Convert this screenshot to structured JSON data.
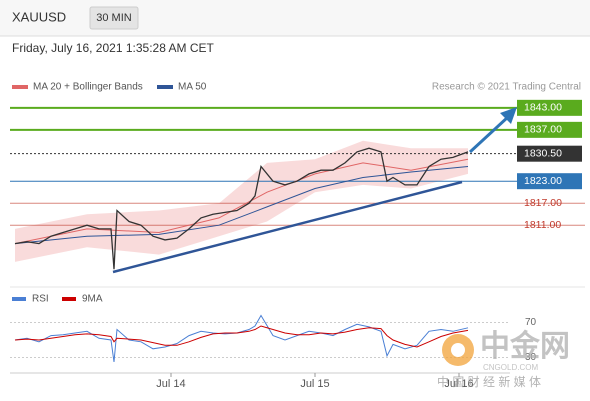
{
  "header": {
    "symbol": "XAUUSD",
    "timeframe": "30 MIN",
    "datetime": "Friday, July 16, 2021 1:35:28 AM CET"
  },
  "watermark": {
    "brand": "中金网",
    "site": "CNGOLD.COM",
    "slogan": "中 国 财 经 新 媒 体"
  },
  "chart_data": [
    {
      "type": "line",
      "credit": "Research © 2021 Trading Central",
      "color": "#333333",
      "xlim": [
        -26.83,
        56.5
      ],
      "ylim": [
        1794.7,
        1846.5
      ],
      "x": [
        -26,
        -24,
        -22,
        -20,
        -18,
        -16,
        -14,
        -12,
        -10,
        -9.5,
        -9,
        -7,
        -5,
        -3,
        -1,
        1,
        3,
        5,
        7,
        9,
        11,
        13,
        14,
        15,
        17,
        19,
        21,
        23,
        25,
        27,
        29,
        31,
        33,
        35,
        36,
        37,
        39,
        41,
        43,
        45,
        47,
        49.5
      ],
      "values": [
        1806,
        1806.5,
        1806,
        1808,
        1809,
        1810,
        1811,
        1810,
        1810,
        1799,
        1815,
        1812,
        1811,
        1808,
        1807,
        1807.5,
        1810,
        1813,
        1814,
        1814.5,
        1815,
        1817,
        1819,
        1827,
        1823,
        1822,
        1823,
        1825,
        1826,
        1826,
        1828,
        1831,
        1832,
        1831,
        1823,
        1824,
        1822,
        1822,
        1827,
        1829,
        1829.5,
        1831
      ],
      "series": [
        {
          "name": "MA 20 + Bollinger Bands",
          "color": "#e06666",
          "band_color": "#f7cccc",
          "x": [
            -26,
            -14,
            -2,
            8,
            16,
            24,
            32,
            40,
            49.5
          ],
          "values": [
            1806,
            1810,
            1809,
            1813,
            1820,
            1825,
            1828,
            1826,
            1829
          ],
          "upper": [
            1810,
            1814,
            1815,
            1817,
            1828,
            1829,
            1834,
            1832,
            1832
          ],
          "lower": [
            1801,
            1805,
            1803,
            1808,
            1812,
            1820,
            1822,
            1821,
            1825
          ]
        },
        {
          "name": "MA 50",
          "color": "#2f5597",
          "x": [
            -26,
            -14,
            -2,
            8,
            16,
            24,
            32,
            40,
            49.5
          ],
          "values": [
            1806,
            1808,
            1808.5,
            1811,
            1816,
            1821,
            1824,
            1825.5,
            1827
          ]
        }
      ],
      "levels": [
        {
          "value": 1843,
          "label": "1843.00",
          "color": "#5aab1e",
          "boxed": true,
          "dashed": false
        },
        {
          "value": 1837,
          "label": "1837.00",
          "color": "#5aab1e",
          "boxed": true,
          "dashed": false
        },
        {
          "value": 1830.5,
          "label": "1830.50",
          "color": "#333333",
          "boxed": true,
          "dashed": true
        },
        {
          "value": 1823,
          "label": "1823.00",
          "color": "#2e75b6",
          "boxed": true,
          "dashed": false
        },
        {
          "value": 1817,
          "label": "1817.00",
          "color": "#c0392b",
          "boxed": false,
          "dashed": false
        },
        {
          "value": 1811,
          "label": "1811.00",
          "color": "#c0392b",
          "boxed": false,
          "dashed": false
        }
      ]
    },
    {
      "type": "line",
      "xlim": [
        -26.83,
        56.5
      ],
      "ylim": [
        10,
        90
      ],
      "yticks": [
        70,
        30
      ],
      "xticks": [
        {
          "value": 0,
          "label": "Jul 14"
        },
        {
          "value": 24,
          "label": "Jul 15"
        },
        {
          "value": 48,
          "label": "Jul 16"
        }
      ],
      "x": [
        -26,
        -24,
        -22,
        -20,
        -18,
        -16,
        -14,
        -12,
        -10,
        -9.5,
        -9,
        -7,
        -5,
        -3,
        -1,
        1,
        3,
        5,
        7,
        9,
        11,
        13,
        14,
        15,
        17,
        19,
        21,
        23,
        25,
        27,
        29,
        31,
        33,
        35,
        36,
        37,
        39,
        41,
        43,
        45,
        47,
        49.5
      ],
      "series": [
        {
          "name": "RSI",
          "color": "#4a7fd4",
          "values": [
            50,
            52,
            48,
            55,
            56,
            58,
            60,
            52,
            50,
            25,
            62,
            50,
            48,
            40,
            42,
            46,
            55,
            60,
            58,
            57,
            58,
            62,
            66,
            78,
            55,
            50,
            55,
            60,
            58,
            55,
            62,
            68,
            65,
            60,
            32,
            45,
            40,
            44,
            60,
            62,
            60,
            64
          ]
        },
        {
          "name": "9MA",
          "color": "#cc0000",
          "values": [
            50,
            51,
            50,
            52,
            54,
            56,
            57,
            56,
            54,
            48,
            52,
            51,
            50,
            47,
            44,
            44,
            48,
            53,
            57,
            58,
            58,
            60,
            62,
            66,
            62,
            58,
            56,
            56,
            58,
            57,
            59,
            62,
            64,
            63,
            55,
            50,
            45,
            42,
            48,
            54,
            58,
            61
          ]
        }
      ]
    }
  ]
}
